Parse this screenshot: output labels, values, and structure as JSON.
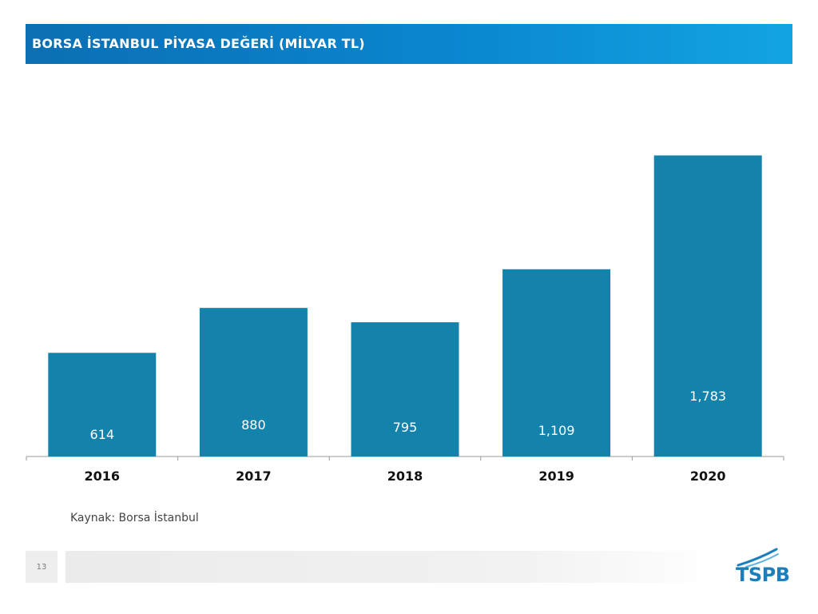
{
  "header": {
    "title": "BORSA İSTANBUL PİYASA DEĞERİ (MİLYAR TL)"
  },
  "chart_data": {
    "type": "bar",
    "title": "BORSA İSTANBUL PİYASA DEĞERİ (MİLYAR TL)",
    "categories": [
      "2016",
      "2017",
      "2018",
      "2019",
      "2020"
    ],
    "values": [
      614,
      880,
      795,
      1109,
      1783
    ],
    "value_labels": [
      "614",
      "880",
      "795",
      "1,109",
      "1,783"
    ],
    "xlabel": "",
    "ylabel": "",
    "ylim": [
      0,
      2000
    ],
    "grid": false,
    "legend": "none",
    "bar_color": "#1483ac"
  },
  "source": {
    "text": "Kaynak: Borsa İstanbul"
  },
  "footer": {
    "page_number": "13",
    "logo_text": "TSPB"
  }
}
